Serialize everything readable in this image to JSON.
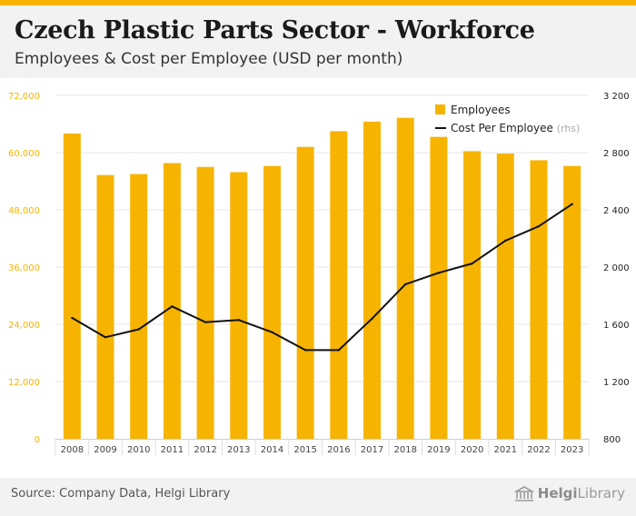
{
  "title": "Czech Plastic Parts Sector - Workforce",
  "subtitle": "Employees & Cost per Employee (USD per month)",
  "source": "Source: Company Data, Helgi Library",
  "brand": {
    "bold": "Helgi",
    "regular": "Library"
  },
  "colors": {
    "bar": "#f6b400",
    "line": "#111111",
    "left_axis": "#f6b400",
    "right_axis": "#222222",
    "grid": "#e6e6e6"
  },
  "chart_data": {
    "type": "bar+line",
    "categories": [
      "2008",
      "2009",
      "2010",
      "2011",
      "2012",
      "2013",
      "2014",
      "2015",
      "2016",
      "2017",
      "2018",
      "2019",
      "2020",
      "2021",
      "2022",
      "2023"
    ],
    "series": [
      {
        "name": "Employees",
        "type": "bar",
        "axis": "left",
        "values": [
          64000,
          55300,
          55500,
          57800,
          57000,
          55900,
          57200,
          61200,
          64500,
          66500,
          67300,
          63300,
          60300,
          59800,
          58400,
          57200
        ]
      },
      {
        "name": "Cost Per Employee",
        "suffix": "(rhs)",
        "type": "line",
        "axis": "right",
        "values": [
          1645,
          1510,
          1565,
          1725,
          1615,
          1630,
          1545,
          1420,
          1420,
          1640,
          1880,
          1960,
          2025,
          2185,
          2285,
          2440
        ]
      }
    ],
    "y_left": {
      "min": 0,
      "max": 72000,
      "ticks": [
        "0",
        "12,000",
        "24,000",
        "36,000",
        "48,000",
        "60,000",
        "72,000"
      ]
    },
    "y_right": {
      "min": 800,
      "max": 3200,
      "ticks": [
        "800",
        "1 200",
        "1 600",
        "2 000",
        "2 400",
        "2 800",
        "3 200"
      ]
    },
    "legend": {
      "position": "top-right"
    }
  }
}
